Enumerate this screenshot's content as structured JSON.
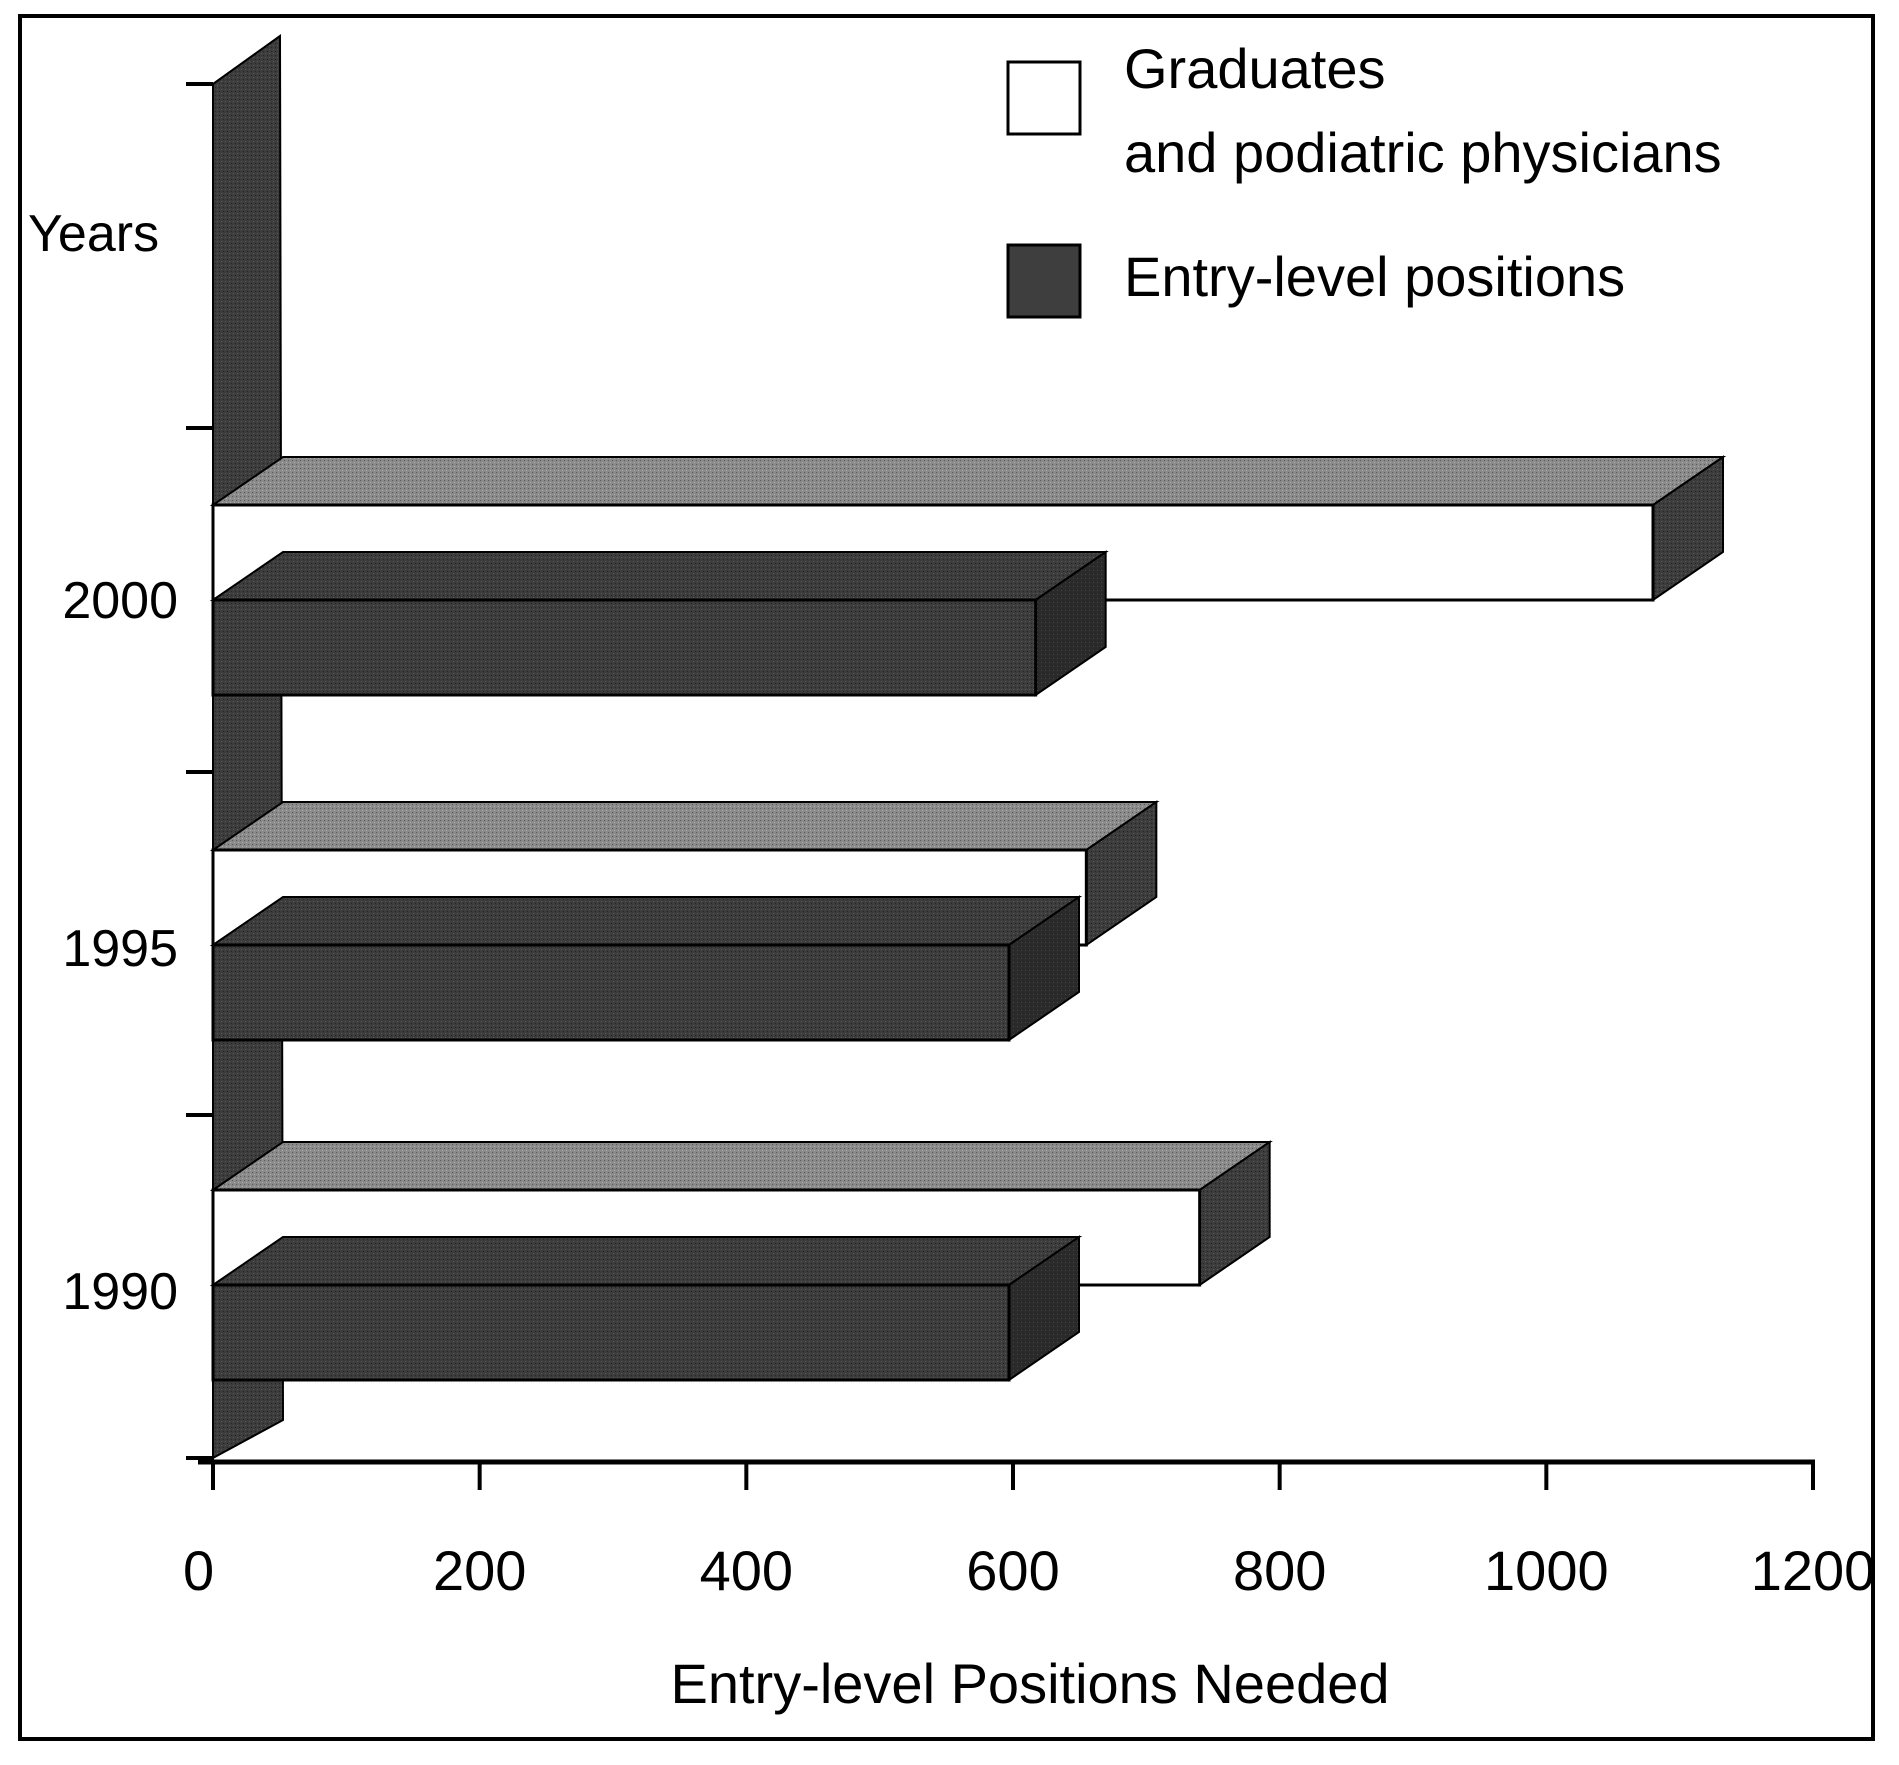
{
  "chart_data": {
    "type": "bar",
    "orientation": "horizontal",
    "style": "3d",
    "title": "",
    "xlabel": "Entry-level Positions Needed",
    "ylabel": "Years",
    "categories": [
      "1990",
      "1995",
      "2000"
    ],
    "series": [
      {
        "name": "Graduates and podiatric physicians",
        "legend_lines": [
          "Graduates",
          "and podiatric physicians"
        ],
        "color": "#ffffff",
        "values": [
          740,
          655,
          1080
        ]
      },
      {
        "name": "Entry-level positions",
        "legend_lines": [
          "Entry-level positions"
        ],
        "color": "#3e3e3e",
        "values": [
          597,
          597,
          617
        ]
      }
    ],
    "xlim": [
      0,
      1200
    ],
    "xticks": [
      0,
      200,
      400,
      600,
      800,
      1000,
      1200
    ],
    "legend_position": "top-right",
    "grid": false
  }
}
